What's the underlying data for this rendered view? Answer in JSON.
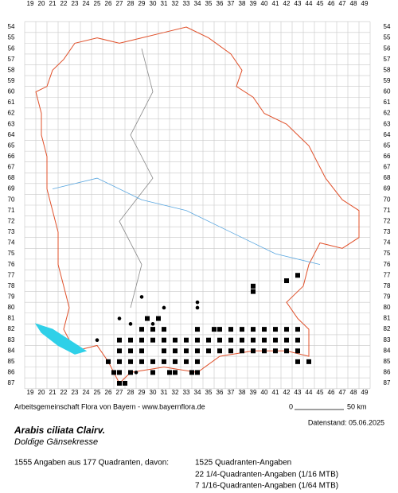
{
  "map": {
    "x_labels": [
      19,
      20,
      21,
      22,
      23,
      24,
      25,
      26,
      27,
      28,
      29,
      30,
      31,
      32,
      33,
      34,
      35,
      36,
      37,
      38,
      39,
      40,
      41,
      42,
      43,
      44,
      45,
      46,
      47,
      48,
      49
    ],
    "y_labels": [
      54,
      55,
      56,
      57,
      58,
      59,
      60,
      61,
      62,
      63,
      64,
      65,
      66,
      67,
      68,
      69,
      70,
      71,
      72,
      73,
      74,
      75,
      76,
      77,
      78,
      79,
      80,
      81,
      82,
      83,
      84,
      85,
      86,
      87
    ],
    "square_rows": [
      {
        "row": 77,
        "cols": [
          43
        ]
      },
      {
        "row": 77.5,
        "cols": [
          42
        ]
      },
      {
        "row": 78,
        "cols": [
          39
        ]
      },
      {
        "row": 78.5,
        "cols": [
          39
        ]
      },
      {
        "row": 81,
        "cols": [
          29.5,
          30.5
        ]
      },
      {
        "row": 82,
        "cols": [
          29,
          30,
          31,
          34,
          35.5,
          36,
          37,
          38,
          39,
          40,
          41,
          42,
          43
        ]
      },
      {
        "row": 83,
        "cols": [
          27,
          28,
          29,
          30,
          31,
          32,
          33,
          34,
          35,
          36,
          37,
          38,
          39,
          40,
          41,
          42,
          43
        ]
      },
      {
        "row": 84,
        "cols": [
          27,
          28,
          29,
          31,
          32,
          33,
          34,
          35,
          36,
          37,
          38,
          39,
          40,
          41,
          42,
          43
        ]
      },
      {
        "row": 85,
        "cols": [
          26,
          27,
          28,
          29,
          30,
          31,
          32,
          33,
          34,
          43,
          44
        ]
      },
      {
        "row": 86,
        "cols": [
          26.5,
          27,
          28,
          30,
          31.5,
          32,
          33.5,
          34
        ]
      },
      {
        "row": 87,
        "cols": [
          27,
          27.5
        ]
      }
    ],
    "dots": [
      [
        29,
        79
      ],
      [
        31,
        80
      ],
      [
        34,
        80
      ],
      [
        34,
        79.5
      ],
      [
        27,
        81
      ],
      [
        28,
        81.5
      ],
      [
        30,
        81.5
      ],
      [
        25,
        83
      ],
      [
        26,
        85
      ],
      [
        28.5,
        86
      ],
      [
        32,
        86
      ]
    ]
  },
  "footer": {
    "credit": "Arbeitsgemeinschaft Flora von Bayern - www.bayernflora.de",
    "scale_start": "0",
    "scale_end": "50 km",
    "date": "Datenstand: 05.06.2025",
    "title": "Arabis ciliata Clairv.",
    "subtitle": "Doldige Gänsekresse",
    "summary": "1555 Angaben aus 177 Quadranten, davon:",
    "details": [
      "1525 Quadranten-Angaben",
      "22 1/4-Quadranten-Angaben (1/16 MTB)",
      "7 1/16-Quadranten-Angaben (1/64 MTB)"
    ]
  }
}
